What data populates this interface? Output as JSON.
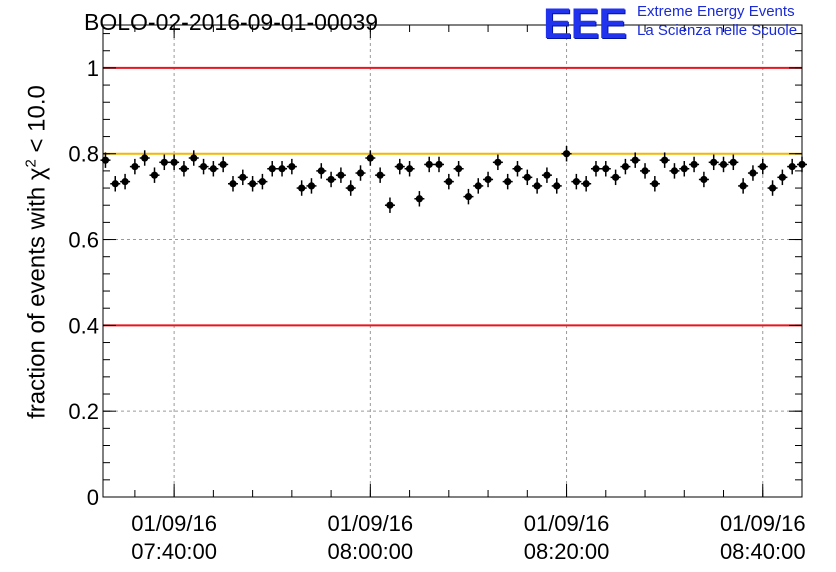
{
  "header": {
    "run_title": "BOLO-02-2016-09-01-00039",
    "logo_mark": "EEE",
    "logo_line1": "Extreme Energy Events",
    "logo_line2": "La Scienza nelle Scuole"
  },
  "chart_data": {
    "type": "scatter",
    "title": "BOLO-02-2016-09-01-00039",
    "xlabel": "",
    "ylabel_pre": "fraction of events with χ",
    "ylabel_sup": "2",
    "ylabel_post": " < 10.0",
    "ylim": [
      0,
      1.1
    ],
    "yticks": [
      0,
      0.2,
      0.4,
      0.6,
      0.8,
      1
    ],
    "ytick_labels": [
      "0",
      "0.2",
      "0.4",
      "0.6",
      "0.8",
      "1"
    ],
    "xlim": [
      "2016-09-01 07:32:45",
      "2016-09-01 08:44:00"
    ],
    "xticks": [
      "2016-09-01 07:40:00",
      "2016-09-01 08:00:00",
      "2016-09-01 08:20:00",
      "2016-09-01 08:40:00"
    ],
    "xtick_labels": [
      [
        "01/09/16",
        "07:40:00"
      ],
      [
        "01/09/16",
        "08:00:00"
      ],
      [
        "01/09/16",
        "08:20:00"
      ],
      [
        "01/09/16",
        "08:40:00"
      ]
    ],
    "grid": true,
    "reference_lines": [
      {
        "y": 1.0,
        "color": "#e8141e"
      },
      {
        "y": 0.8,
        "color": "#f2b800"
      },
      {
        "y": 0.4,
        "color": "#e8141e"
      }
    ],
    "marker_color": "#000000",
    "series": [
      {
        "x": [
          "07:33:00",
          "07:34:00",
          "07:35:00",
          "07:36:00",
          "07:37:00",
          "07:38:00",
          "07:39:00",
          "07:40:00",
          "07:41:00",
          "07:42:00",
          "07:43:00",
          "07:44:00",
          "07:45:00",
          "07:46:00",
          "07:47:00",
          "07:48:00",
          "07:49:00",
          "07:50:00",
          "07:51:00",
          "07:52:00",
          "07:53:00",
          "07:54:00",
          "07:55:00",
          "07:56:00",
          "07:57:00",
          "07:58:00",
          "07:59:00",
          "08:00:00",
          "08:01:00",
          "08:02:00",
          "08:03:00",
          "08:04:00",
          "08:05:00",
          "08:06:00",
          "08:07:00",
          "08:08:00",
          "08:09:00",
          "08:10:00",
          "08:11:00",
          "08:12:00",
          "08:13:00",
          "08:14:00",
          "08:15:00",
          "08:16:00",
          "08:17:00",
          "08:18:00",
          "08:19:00",
          "08:20:00",
          "08:21:00",
          "08:22:00",
          "08:23:00",
          "08:24:00",
          "08:25:00",
          "08:26:00",
          "08:27:00",
          "08:28:00",
          "08:29:00",
          "08:30:00",
          "08:31:00",
          "08:32:00",
          "08:33:00",
          "08:34:00",
          "08:35:00",
          "08:36:00",
          "08:37:00",
          "08:38:00",
          "08:39:00",
          "08:40:00",
          "08:41:00",
          "08:42:00",
          "08:43:00",
          "08:44:00"
        ],
        "y": [
          0.785,
          0.73,
          0.735,
          0.77,
          0.79,
          0.75,
          0.78,
          0.78,
          0.765,
          0.79,
          0.77,
          0.765,
          0.775,
          0.73,
          0.745,
          0.73,
          0.735,
          0.765,
          0.765,
          0.77,
          0.72,
          0.725,
          0.76,
          0.74,
          0.75,
          0.72,
          0.755,
          0.79,
          0.75,
          0.68,
          0.77,
          0.765,
          0.695,
          0.775,
          0.775,
          0.735,
          0.765,
          0.7,
          0.725,
          0.74,
          0.78,
          0.735,
          0.765,
          0.745,
          0.725,
          0.75,
          0.725,
          0.8,
          0.735,
          0.73,
          0.765,
          0.765,
          0.745,
          0.77,
          0.785,
          0.76,
          0.73,
          0.785,
          0.76,
          0.765,
          0.775,
          0.74,
          0.78,
          0.775,
          0.78,
          0.725,
          0.755,
          0.77,
          0.72,
          0.745,
          0.77,
          0.775
        ],
        "yerr": 0.018
      }
    ]
  }
}
